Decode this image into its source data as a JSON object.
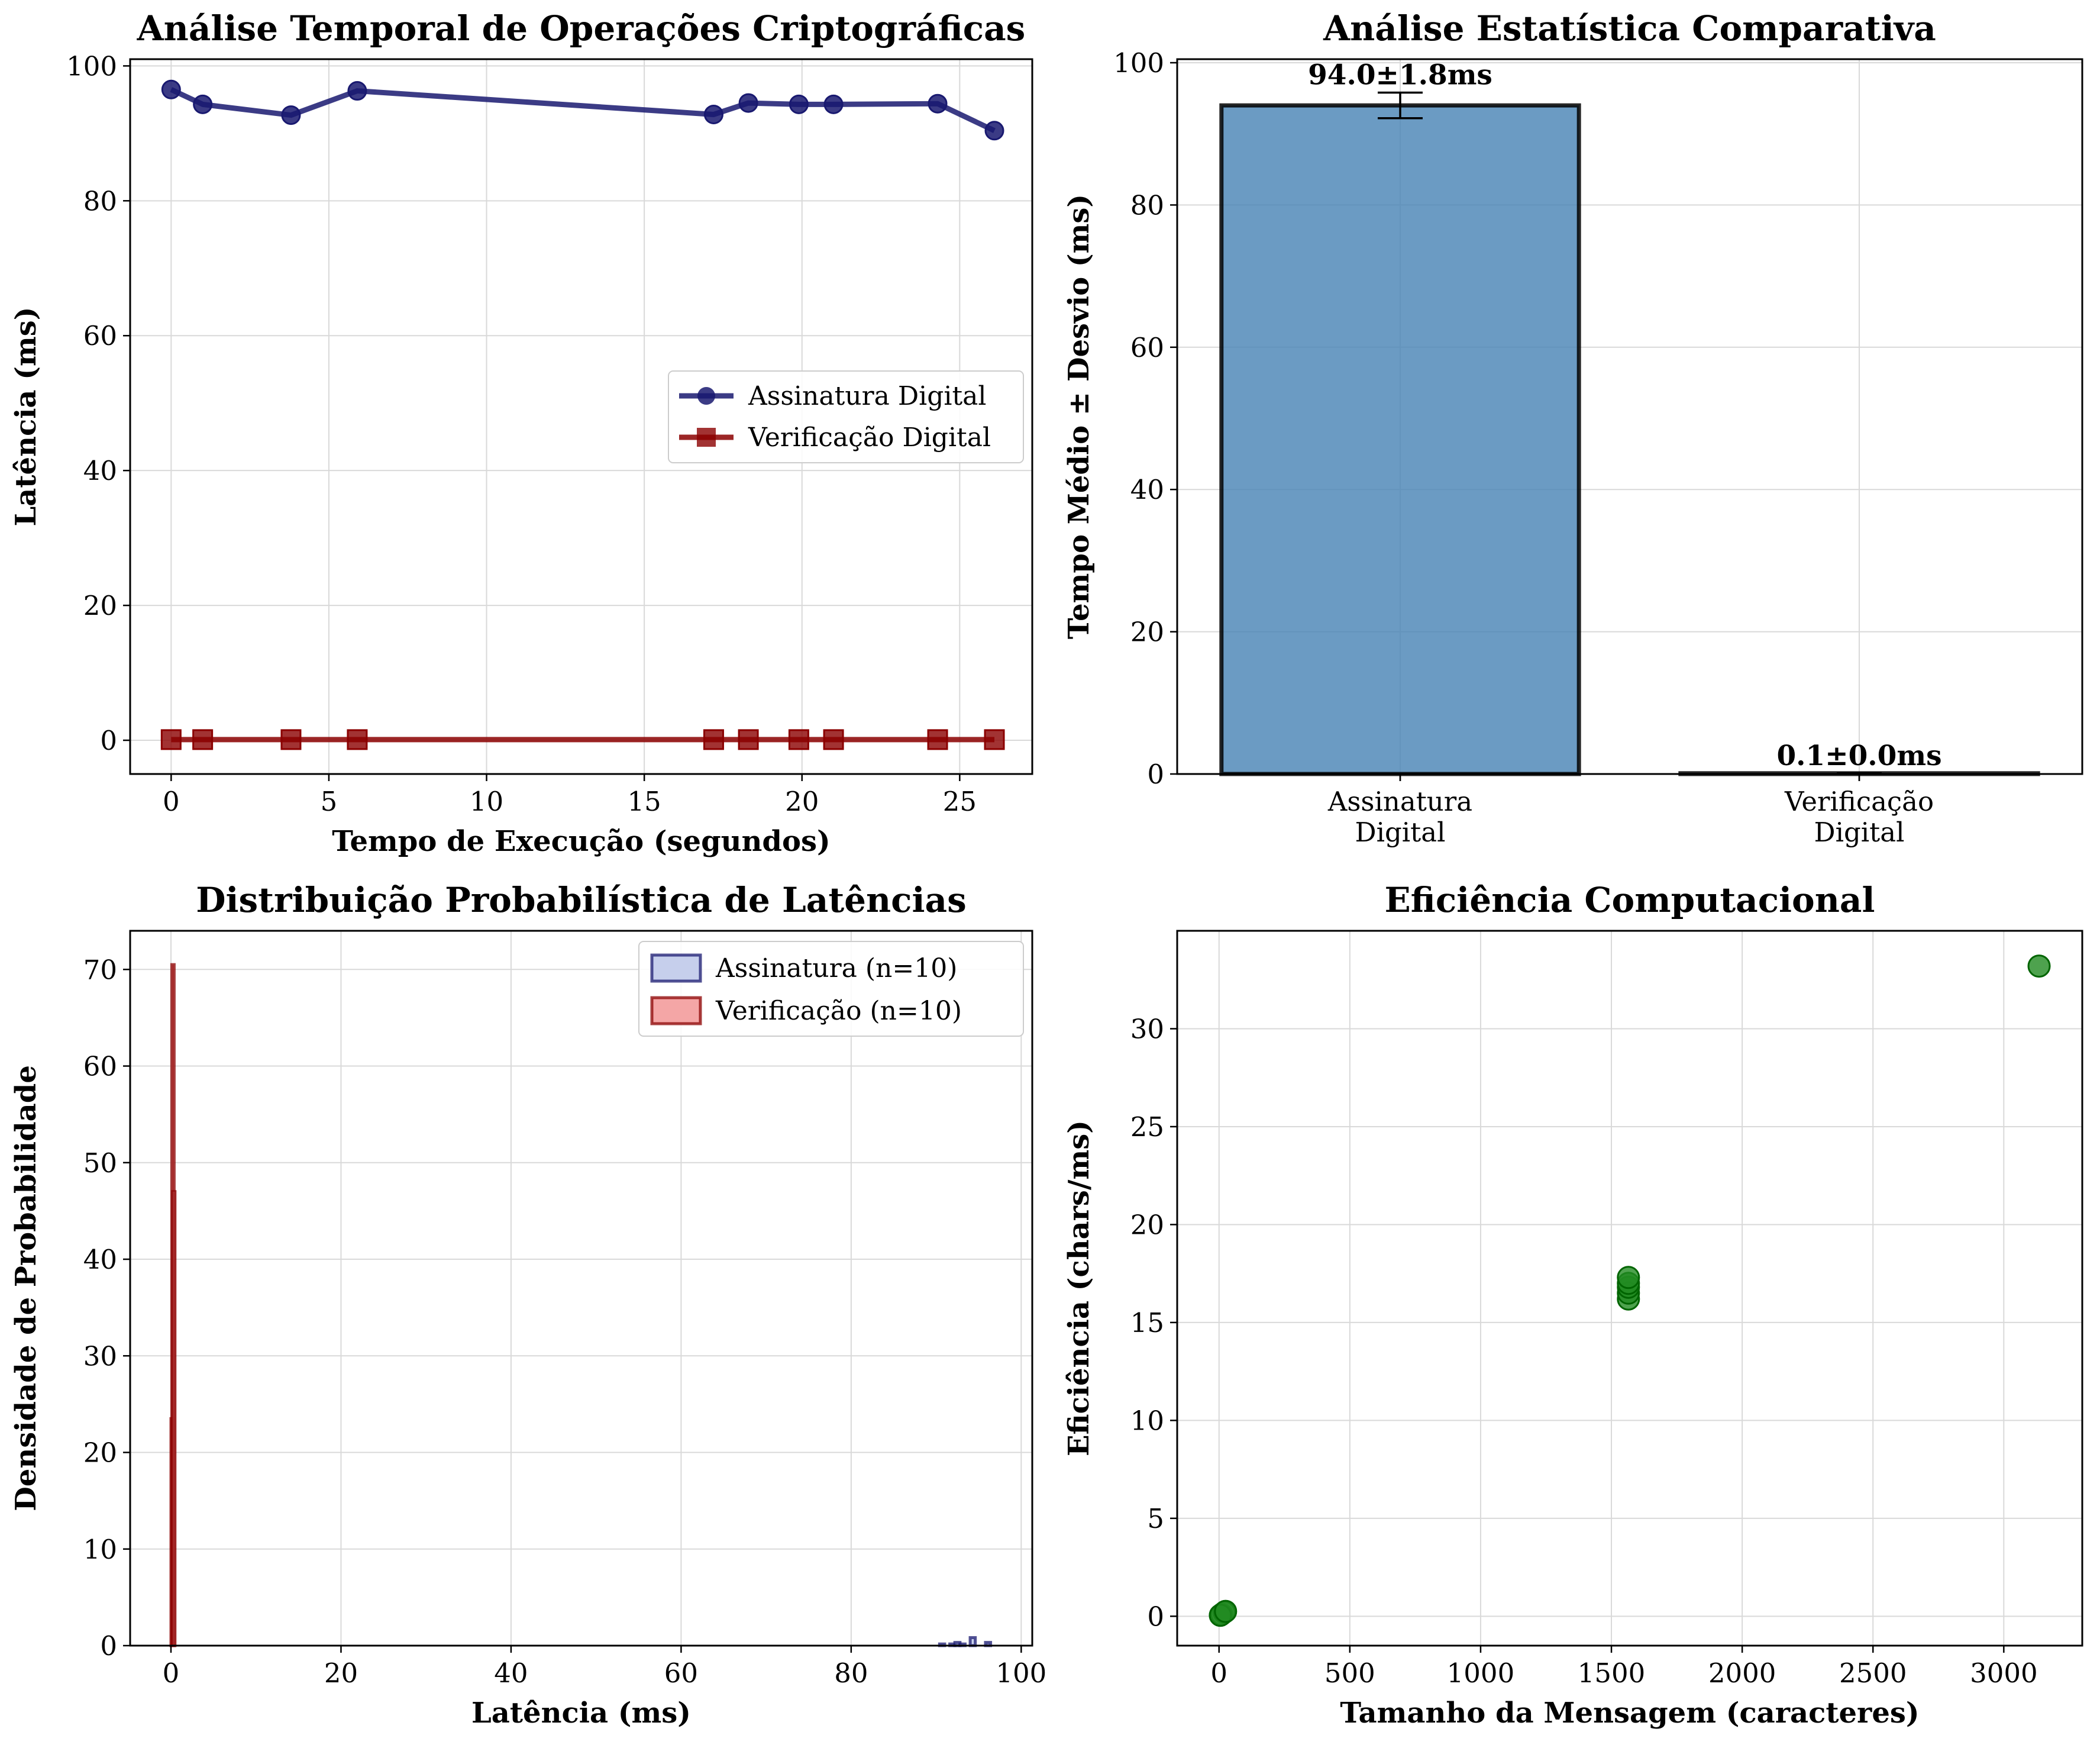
{
  "chart_data": [
    {
      "type": "line",
      "title": "Análise Temporal de Operações Criptográficas",
      "xlabel": "Tempo de Execução (segundos)",
      "ylabel": "Latência (ms)",
      "xlim": [
        -1.3,
        27.3
      ],
      "ylim": [
        -5,
        101
      ],
      "xticks": [
        0,
        5,
        10,
        15,
        20,
        25
      ],
      "yticks": [
        0,
        20,
        40,
        60,
        80,
        100
      ],
      "grid": true,
      "legend": "center-right",
      "series": [
        {
          "name": "Assinatura Digital",
          "color": "#191970",
          "marker": "circle",
          "x": [
            0,
            1.0,
            3.8,
            5.9,
            17.2,
            18.3,
            19.9,
            21.0,
            24.3,
            26.1
          ],
          "y": [
            96.5,
            94.3,
            92.7,
            96.3,
            92.8,
            94.5,
            94.3,
            94.3,
            94.4,
            90.4
          ]
        },
        {
          "name": "Verificação Digital",
          "color": "#8B0000",
          "marker": "square",
          "x": [
            0,
            1.0,
            3.8,
            5.9,
            17.2,
            18.3,
            19.9,
            21.0,
            24.3,
            26.1
          ],
          "y": [
            0.1,
            0.1,
            0.1,
            0.1,
            0.1,
            0.1,
            0.1,
            0.1,
            0.1,
            0.1
          ]
        }
      ]
    },
    {
      "type": "bar",
      "title": "Análise Estatística Comparativa",
      "xlabel": "",
      "ylabel": "Tempo Médio ± Desvio (ms)",
      "categories": [
        [
          "Assinatura",
          "Digital"
        ],
        [
          "Verificação",
          "Digital"
        ]
      ],
      "values": [
        94.0,
        0.1
      ],
      "errors": [
        1.8,
        0.0
      ],
      "data_labels": [
        "94.0±1.8ms",
        "0.1±0.0ms"
      ],
      "colors": [
        "#4682B4",
        "#8B0000"
      ],
      "ylim": [
        0,
        100.5
      ],
      "yticks": [
        0,
        20,
        40,
        60,
        80,
        100
      ],
      "grid": true
    },
    {
      "type": "histogram",
      "title": "Distribuição Probabilística de Latências",
      "xlabel": "Latência (ms)",
      "ylabel": "Densidade de Probabilidade",
      "xlim": [
        -4.8,
        101.3
      ],
      "ylim": [
        0,
        74
      ],
      "xticks": [
        0,
        20,
        40,
        60,
        80,
        100
      ],
      "yticks": [
        0,
        10,
        20,
        30,
        40,
        50,
        60,
        70
      ],
      "grid": true,
      "legend": "top-right",
      "series": [
        {
          "name": "Assinatura (n=10)",
          "fill": "#c6cfec",
          "edge": "#191970",
          "bins": [
            {
              "x0": 90.4,
              "x1": 91.0,
              "density": 0.17
            },
            {
              "x0": 91.0,
              "x1": 91.6,
              "density": 0.0
            },
            {
              "x0": 91.6,
              "x1": 92.2,
              "density": 0.17
            },
            {
              "x0": 92.2,
              "x1": 92.8,
              "density": 0.33
            },
            {
              "x0": 92.8,
              "x1": 93.4,
              "density": 0.17
            },
            {
              "x0": 93.4,
              "x1": 94.0,
              "density": 0.0
            },
            {
              "x0": 94.0,
              "x1": 94.6,
              "density": 0.83
            },
            {
              "x0": 94.6,
              "x1": 95.2,
              "density": 0.0
            },
            {
              "x0": 95.2,
              "x1": 95.8,
              "density": 0.0
            },
            {
              "x0": 95.8,
              "x1": 96.4,
              "density": 0.33
            }
          ]
        },
        {
          "name": "Verificação (n=10)",
          "fill": "#f4a6a6",
          "edge": "#8B0000",
          "bins": [
            {
              "x0": 0.0,
              "x1": 0.1,
              "density": 23.5
            },
            {
              "x0": 0.1,
              "x1": 0.2,
              "density": 70.5
            },
            {
              "x0": 0.2,
              "x1": 0.3,
              "density": 47.0
            }
          ]
        }
      ]
    },
    {
      "type": "scatter",
      "title": "Eficiência Computacional",
      "xlabel": "Tamanho da Mensagem (caracteres)",
      "ylabel": "Eficiência (chars/ms)",
      "xlim": [
        -160,
        3300
      ],
      "ylim": [
        -1.5,
        35
      ],
      "xticks": [
        0,
        500,
        1000,
        1500,
        2000,
        2500,
        3000
      ],
      "yticks": [
        0,
        5,
        10,
        15,
        20,
        25,
        30
      ],
      "grid": true,
      "series": [
        {
          "color": "#228B22",
          "edge": "#006400",
          "x": [
            10,
            20,
            5,
            25,
            1565,
            1565,
            1565,
            1565,
            1565,
            3135
          ],
          "y": [
            0.1,
            0.2,
            0.05,
            0.25,
            16.2,
            16.5,
            16.8,
            17.0,
            17.3,
            33.2
          ]
        }
      ]
    }
  ]
}
